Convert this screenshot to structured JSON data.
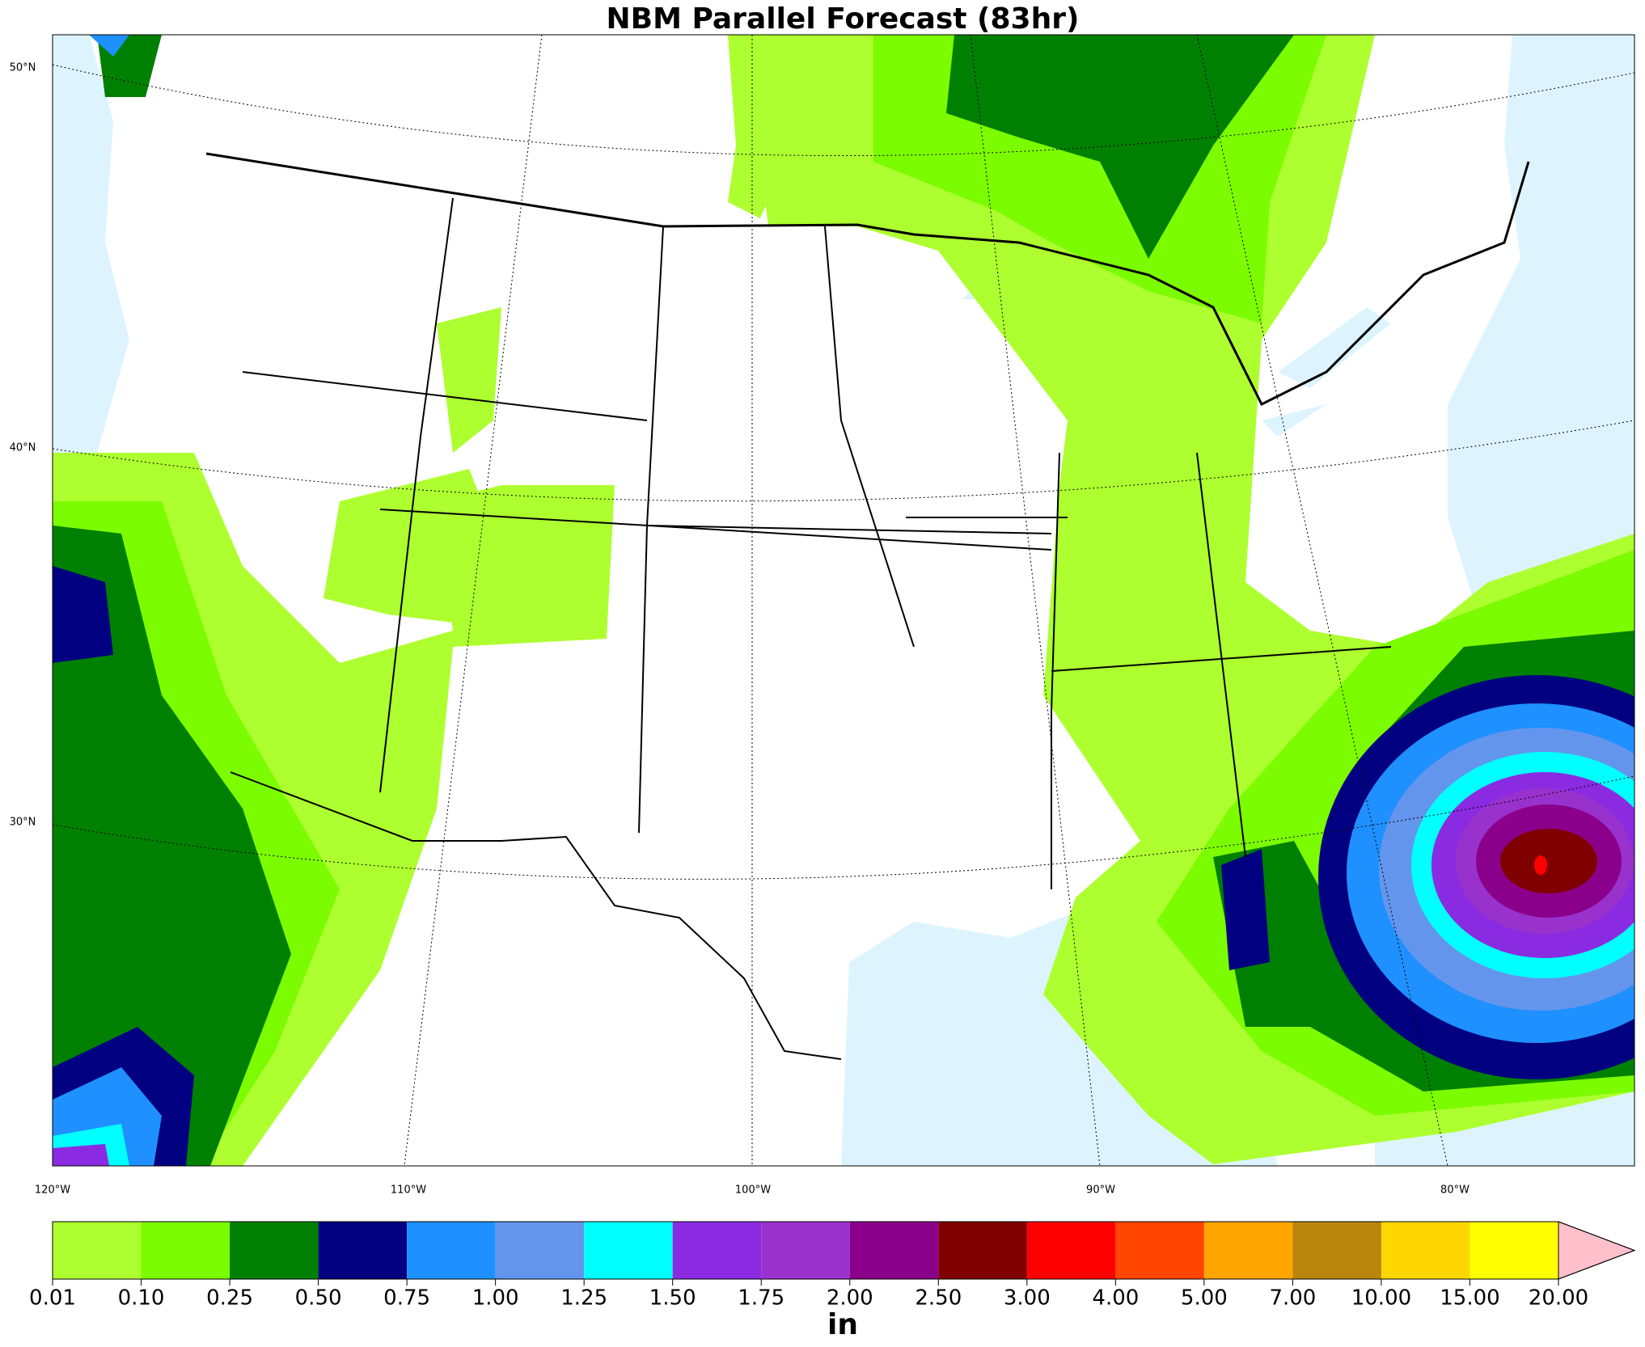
{
  "chart_data": {
    "type": "colorbar-map",
    "title": "NBM Parallel Forecast (83hr)",
    "lat_labels": [
      "50°N",
      "40°N",
      "30°N"
    ],
    "lon_labels": [
      "120°W",
      "110°W",
      "100°W",
      "90°W",
      "80°W"
    ],
    "unit": "in",
    "levels": [
      0.01,
      {
        "value": 0.1,
        "label": "0.10"
      },
      0.25,
      {
        "value": 0.5,
        "label": "0.50"
      },
      0.75,
      {
        "value": 1,
        "label": "1.00"
      },
      1.25,
      {
        "value": 1.5,
        "label": "1.50"
      },
      1.75,
      {
        "value": 2,
        "label": "2.00"
      },
      {
        "value": 2.5,
        "label": "2.50"
      },
      {
        "value": 3,
        "label": "3.00"
      },
      {
        "value": 4,
        "label": "4.00"
      },
      {
        "value": 5,
        "label": "5.00"
      },
      {
        "value": 7,
        "label": "7.00"
      },
      {
        "value": 10,
        "label": "10.00"
      },
      {
        "value": 15,
        "label": "15.00"
      },
      {
        "value": 20,
        "label": "20.00"
      }
    ],
    "colors": [
      "#adff2f",
      "#7cfc00",
      "#008000",
      "#000080",
      "#1e90ff",
      "#6495ed",
      "#00ffff",
      "#8a2be2",
      "#9932cc",
      "#8b008b",
      "#800000",
      "#ff0000",
      "#ff4500",
      "#ffa500",
      "#b8860b",
      "#ffd700",
      "#ffff00"
    ],
    "extend_color": "#ffc0cb"
  }
}
